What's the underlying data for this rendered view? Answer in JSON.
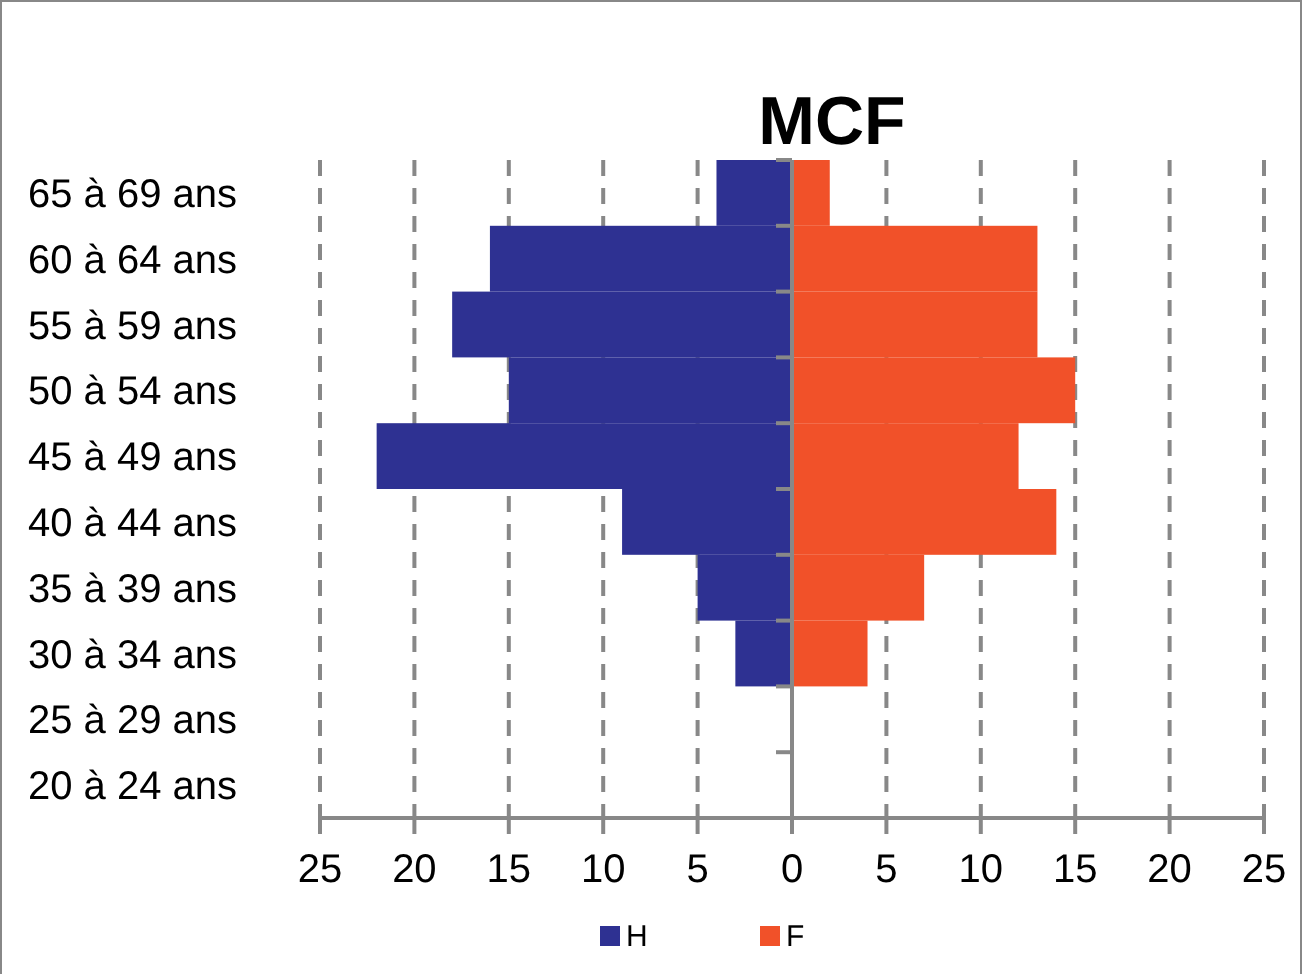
{
  "chart_data": {
    "type": "bar",
    "title": "MCF",
    "orientation": "horizontal",
    "stacked": true,
    "categories": [
      "65 à 69 ans",
      "60 à 64 ans",
      "55 à 59 ans",
      "50 à 54 ans",
      "45 à 49 ans",
      "40 à 44 ans",
      "35 à 39 ans",
      "30 à 34 ans",
      "25 à 29 ans",
      "20 à 24 ans"
    ],
    "series": [
      {
        "name": "H",
        "color": "#2e3192",
        "values": [
          -4,
          -16,
          -18,
          -15,
          -22,
          -9,
          -5,
          -3,
          0,
          0
        ]
      },
      {
        "name": "F",
        "color": "#f15129",
        "values": [
          2,
          13,
          13,
          15,
          12,
          14,
          7,
          4,
          0,
          0
        ]
      }
    ],
    "xlim": [
      -25,
      25
    ],
    "xticks": [
      {
        "value": -25,
        "label": "25"
      },
      {
        "value": -20,
        "label": "20"
      },
      {
        "value": -15,
        "label": "15"
      },
      {
        "value": -10,
        "label": "10"
      },
      {
        "value": -5,
        "label": "5"
      },
      0,
      5,
      10,
      15,
      20,
      25
    ],
    "grid": "x",
    "legend": "bottom"
  }
}
